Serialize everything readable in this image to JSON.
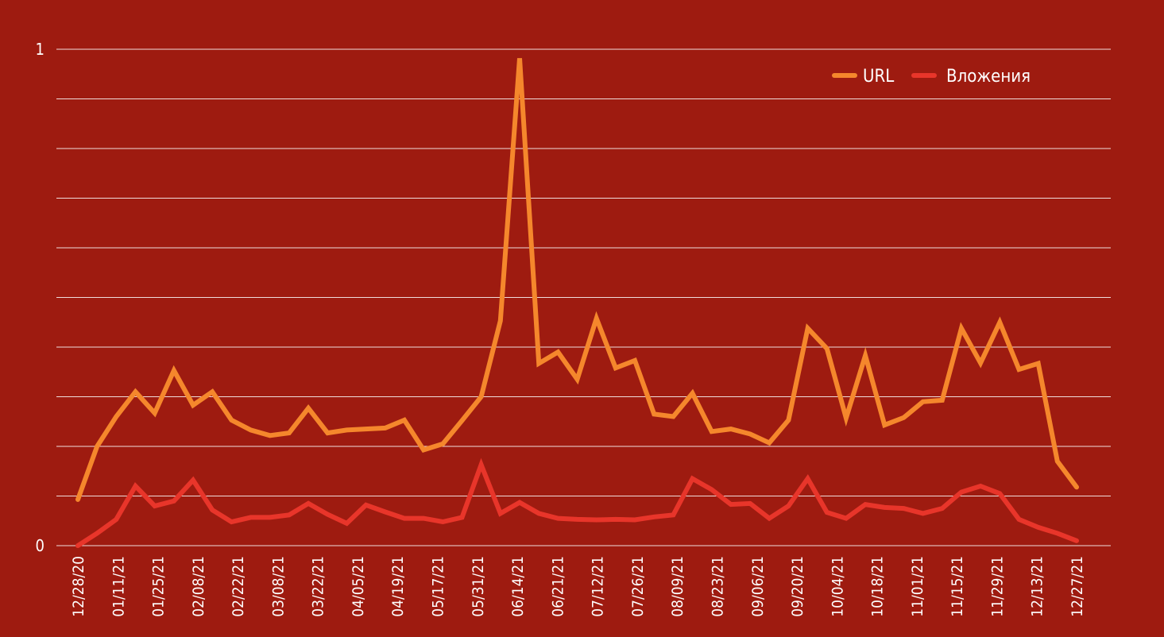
{
  "chart_data": {
    "type": "line",
    "title": "",
    "xlabel": "",
    "ylabel": "",
    "ylim": [
      0,
      1
    ],
    "y_tick_labels": [
      "0",
      "1"
    ],
    "grid": true,
    "legend_position": "top-right",
    "x_tick_labels": [
      "12/28/20",
      "01/11/21",
      "01/25/21",
      "02/08/21",
      "02/22/21",
      "03/08/21",
      "03/22/21",
      "04/05/21",
      "04/19/21",
      "05/17/21",
      "05/31/21",
      "06/14/21",
      "06/21/21",
      "07/12/21",
      "07/26/21",
      "08/09/21",
      "08/23/21",
      "09/06/21",
      "09/20/21",
      "10/04/21",
      "10/18/21",
      "11/01/21",
      "11/15/21",
      "11/29/21",
      "12/13/21",
      "12/27/21"
    ],
    "series": [
      {
        "name": "URL",
        "color": "#f5872c",
        "values": [
          0.093,
          0.2,
          0.26,
          0.31,
          0.267,
          0.353,
          0.283,
          0.31,
          0.253,
          0.233,
          0.222,
          0.227,
          0.277,
          0.227,
          0.233,
          0.235,
          0.237,
          0.253,
          0.193,
          0.205,
          0.252,
          0.3,
          0.453,
          0.982,
          0.367,
          0.39,
          0.335,
          0.458,
          0.358,
          0.373,
          0.265,
          0.26,
          0.307,
          0.23,
          0.235,
          0.225,
          0.207,
          0.253,
          0.438,
          0.397,
          0.257,
          0.383,
          0.243,
          0.258,
          0.29,
          0.293,
          0.438,
          0.368,
          0.45,
          0.355,
          0.367,
          0.17,
          0.118
        ]
      },
      {
        "name": "Вложения",
        "color": "#e8352a",
        "values": [
          0.0,
          0.025,
          0.053,
          0.12,
          0.08,
          0.09,
          0.132,
          0.072,
          0.048,
          0.057,
          0.057,
          0.062,
          0.085,
          0.063,
          0.045,
          0.082,
          0.068,
          0.055,
          0.055,
          0.048,
          0.057,
          0.163,
          0.065,
          0.087,
          0.065,
          0.055,
          0.053,
          0.052,
          0.053,
          0.052,
          0.058,
          0.062,
          0.135,
          0.113,
          0.083,
          0.085,
          0.055,
          0.08,
          0.135,
          0.067,
          0.055,
          0.083,
          0.077,
          0.075,
          0.065,
          0.075,
          0.108,
          0.12,
          0.105,
          0.053,
          0.037,
          0.025,
          0.01
        ]
      }
    ]
  }
}
